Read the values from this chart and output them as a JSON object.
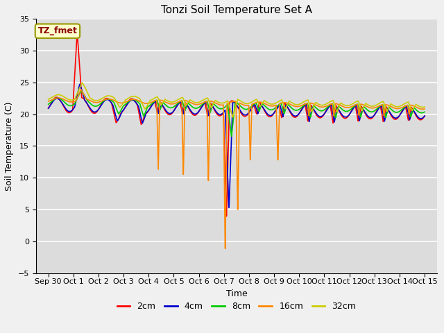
{
  "title": "Tonzi Soil Temperature Set A",
  "xlabel": "Time",
  "ylabel": "Soil Temperature (C)",
  "ylim": [
    -5,
    35
  ],
  "xlim": [
    -0.5,
    15.5
  ],
  "plot_bg_color": "#dcdcdc",
  "fig_bg_color": "#f0f0f0",
  "annotation_text": "TZ_fmet",
  "annotation_box_color": "#ffffcc",
  "annotation_text_color": "#8b0000",
  "legend_entries": [
    "2cm",
    "4cm",
    "8cm",
    "16cm",
    "32cm"
  ],
  "line_colors": [
    "#ff0000",
    "#0000cc",
    "#00cc00",
    "#ff8800",
    "#cccc00"
  ],
  "xtick_labels": [
    "Sep 30",
    "Oct 1",
    "Oct 2",
    "Oct 3",
    "Oct 4",
    "Oct 5",
    "Oct 6",
    "Oct 7",
    "Oct 8",
    "Oct 9",
    "Oct 10",
    "Oct 11",
    "Oct 12",
    "Oct 13",
    "Oct 14",
    "Oct 15"
  ],
  "xtick_positions": [
    0,
    1,
    2,
    3,
    4,
    5,
    6,
    7,
    8,
    9,
    10,
    11,
    12,
    13,
    14,
    15
  ],
  "ytick_positions": [
    -5,
    0,
    5,
    10,
    15,
    20,
    25,
    30,
    35
  ]
}
